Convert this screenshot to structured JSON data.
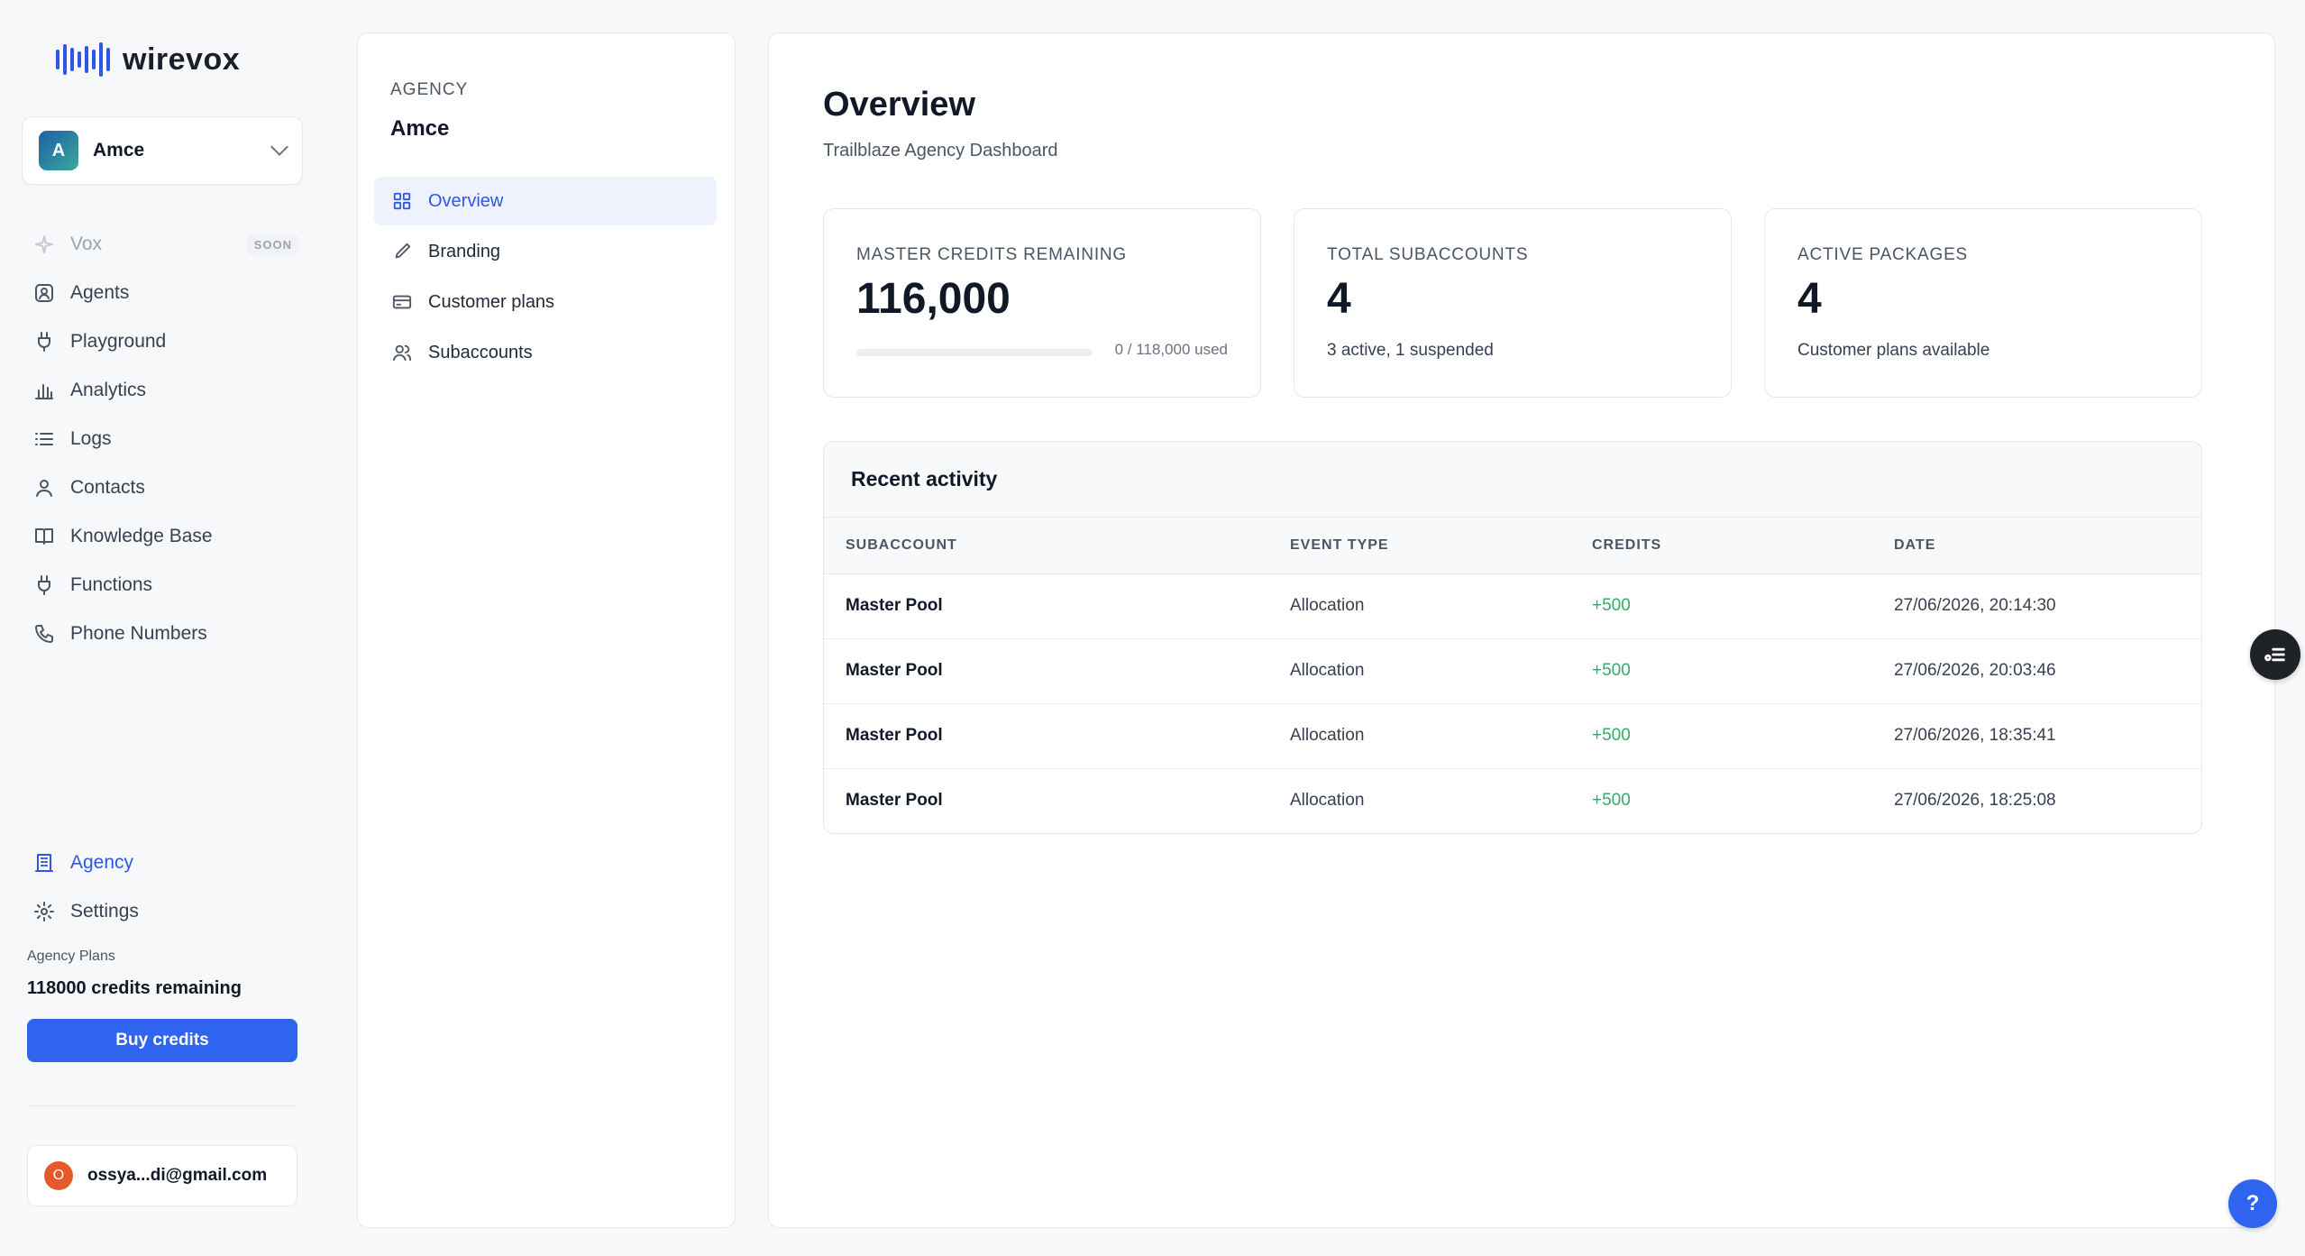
{
  "brand": {
    "name": "wirevox",
    "accent": "#2f56e8"
  },
  "workspace": {
    "initial": "A",
    "name": "Amce"
  },
  "sidebar": {
    "items": [
      {
        "label": "Vox",
        "icon": "sparkle-icon",
        "badge": "SOON",
        "disabled": true
      },
      {
        "label": "Agents",
        "icon": "agent-icon"
      },
      {
        "label": "Playground",
        "icon": "plug-icon"
      },
      {
        "label": "Analytics",
        "icon": "bar-chart-icon"
      },
      {
        "label": "Logs",
        "icon": "list-icon"
      },
      {
        "label": "Contacts",
        "icon": "user-icon"
      },
      {
        "label": "Knowledge Base",
        "icon": "book-icon"
      },
      {
        "label": "Functions",
        "icon": "plug-icon"
      },
      {
        "label": "Phone Numbers",
        "icon": "phone-icon"
      }
    ],
    "bottom_items": [
      {
        "label": "Agency",
        "icon": "building-icon",
        "active": true
      },
      {
        "label": "Settings",
        "icon": "gear-icon"
      }
    ],
    "plans_label": "Agency Plans",
    "credits_remaining": "118000 credits remaining",
    "buy_button": "Buy credits",
    "user": {
      "initial": "O",
      "email": "ossya...di@gmail.com"
    }
  },
  "agency_panel": {
    "label": "AGENCY",
    "name": "Amce",
    "items": [
      {
        "label": "Overview",
        "icon": "grid-icon",
        "active": true
      },
      {
        "label": "Branding",
        "icon": "brush-icon"
      },
      {
        "label": "Customer plans",
        "icon": "card-icon"
      },
      {
        "label": "Subaccounts",
        "icon": "users-icon"
      }
    ]
  },
  "main": {
    "title": "Overview",
    "subtitle": "Trailblaze Agency Dashboard",
    "cards": [
      {
        "label": "MASTER CREDITS REMAINING",
        "value": "116,000",
        "progress_text": "0 / 118,000 used",
        "progress_fraction": 0
      },
      {
        "label": "TOTAL SUBACCOUNTS",
        "value": "4",
        "footer": "3 active, 1 suspended"
      },
      {
        "label": "ACTIVE PACKAGES",
        "value": "4",
        "footer": "Customer plans available"
      }
    ],
    "activity": {
      "title": "Recent activity",
      "columns": [
        "SUBACCOUNT",
        "EVENT TYPE",
        "CREDITS",
        "DATE"
      ],
      "rows": [
        {
          "subaccount": "Master Pool",
          "event": "Allocation",
          "credits": "+500",
          "date": "27/06/2026, 20:14:30"
        },
        {
          "subaccount": "Master Pool",
          "event": "Allocation",
          "credits": "+500",
          "date": "27/06/2026, 20:03:46"
        },
        {
          "subaccount": "Master Pool",
          "event": "Allocation",
          "credits": "+500",
          "date": "27/06/2026, 18:35:41"
        },
        {
          "subaccount": "Master Pool",
          "event": "Allocation",
          "credits": "+500",
          "date": "27/06/2026, 18:25:08"
        }
      ]
    }
  },
  "help_button": "?"
}
